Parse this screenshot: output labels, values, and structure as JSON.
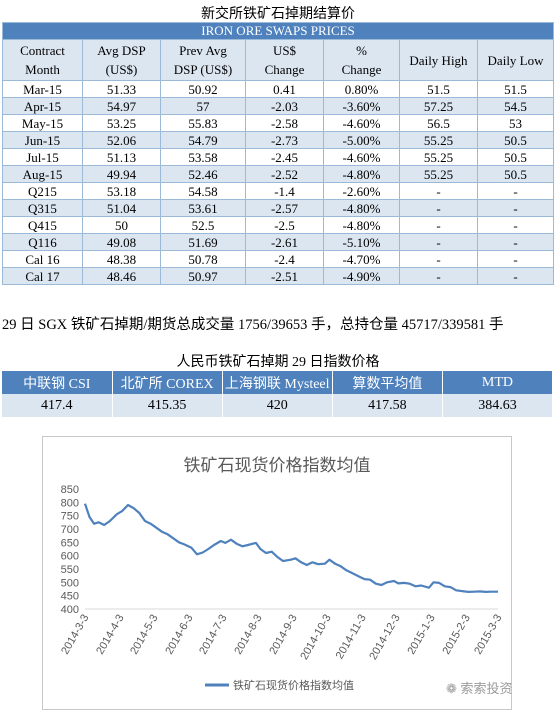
{
  "swaps_caption": "新交所铁矿石掉期结算价",
  "swaps_table": {
    "banner": "IRON ORE SWAPS PRICES",
    "headers": [
      [
        "Contract",
        "Month"
      ],
      [
        "Avg DSP",
        "(US$)"
      ],
      [
        "Prev Avg",
        "DSP (US$)"
      ],
      [
        "US$",
        "Change"
      ],
      [
        "%",
        "Change"
      ],
      [
        "Daily High",
        ""
      ],
      [
        "Daily Low",
        ""
      ]
    ],
    "rows": [
      [
        "Mar-15",
        "51.33",
        "50.92",
        "0.41",
        "0.80%",
        "51.5",
        "51.5"
      ],
      [
        "Apr-15",
        "54.97",
        "57",
        "-2.03",
        "-3.60%",
        "57.25",
        "54.5"
      ],
      [
        "May-15",
        "53.25",
        "55.83",
        "-2.58",
        "-4.60%",
        "56.5",
        "53"
      ],
      [
        "Jun-15",
        "52.06",
        "54.79",
        "-2.73",
        "-5.00%",
        "55.25",
        "50.5"
      ],
      [
        "Jul-15",
        "51.13",
        "53.58",
        "-2.45",
        "-4.60%",
        "55.25",
        "50.5"
      ],
      [
        "Aug-15",
        "49.94",
        "52.46",
        "-2.52",
        "-4.80%",
        "55.25",
        "50.5"
      ],
      [
        "Q215",
        "53.18",
        "54.58",
        "-1.4",
        "-2.60%",
        "-",
        "-"
      ],
      [
        "Q315",
        "51.04",
        "53.61",
        "-2.57",
        "-4.80%",
        "-",
        "-"
      ],
      [
        "Q415",
        "50",
        "52.5",
        "-2.5",
        "-4.80%",
        "-",
        "-"
      ],
      [
        "Q116",
        "49.08",
        "51.69",
        "-2.61",
        "-5.10%",
        "-",
        "-"
      ],
      [
        "Cal 16",
        "48.38",
        "50.78",
        "-2.4",
        "-4.70%",
        "-",
        "-"
      ],
      [
        "Cal 17",
        "48.46",
        "50.97",
        "-2.51",
        "-4.90%",
        "-",
        "-"
      ]
    ]
  },
  "sgx_note": "29 日 SGX 铁矿石掉期/期货总成交量 1756/39653 手，总持仓量 45717/339581 手",
  "rmb_caption": "人民币铁矿石掉期 29 日指数价格",
  "rmb_table": {
    "headers": [
      "中联钢 CSI",
      "北矿所 COREX",
      "上海钢联 Mysteel",
      "算数平均值",
      "MTD"
    ],
    "values": [
      "417.4",
      "415.35",
      "420",
      "417.58",
      "384.63"
    ]
  },
  "chart_data": {
    "type": "line",
    "title": "铁矿石现货价格指数均值",
    "series": [
      {
        "name": "铁矿石现货价格指数均值",
        "x": [
          "2014-3-3",
          "2014-3-7",
          "2014-3-11",
          "2014-3-15",
          "2014-3-20",
          "2014-3-25",
          "2014-3-31",
          "2014-4-5",
          "2014-4-10",
          "2014-4-15",
          "2014-4-20",
          "2014-4-25",
          "2014-4-30",
          "2014-5-5",
          "2014-5-10",
          "2014-5-15",
          "2014-5-20",
          "2014-5-25",
          "2014-5-30",
          "2014-6-5",
          "2014-6-10",
          "2014-6-15",
          "2014-6-20",
          "2014-6-25",
          "2014-7-1",
          "2014-7-5",
          "2014-7-10",
          "2014-7-15",
          "2014-7-20",
          "2014-7-25",
          "2014-8-1",
          "2014-8-5",
          "2014-8-10",
          "2014-8-15",
          "2014-8-20",
          "2014-8-25",
          "2014-9-1",
          "2014-9-5",
          "2014-9-10",
          "2014-9-15",
          "2014-9-20",
          "2014-9-25",
          "2014-10-1",
          "2014-10-5",
          "2014-10-10",
          "2014-10-15",
          "2014-10-20",
          "2014-10-25",
          "2014-11-1",
          "2014-11-5",
          "2014-11-10",
          "2014-11-15",
          "2014-11-20",
          "2014-11-25",
          "2014-12-1",
          "2014-12-5",
          "2014-12-10",
          "2014-12-15",
          "2014-12-20",
          "2014-12-25",
          "2015-1-1",
          "2015-1-5",
          "2015-1-10",
          "2015-1-15",
          "2015-1-20",
          "2015-1-25",
          "2015-2-1",
          "2015-2-5",
          "2015-2-10",
          "2015-2-15",
          "2015-2-20",
          "2015-2-25",
          "2015-3-1",
          "2015-3-3"
        ],
        "values": [
          795,
          745,
          720,
          725,
          715,
          730,
          755,
          768,
          790,
          778,
          760,
          730,
          720,
          705,
          690,
          680,
          665,
          650,
          642,
          630,
          605,
          612,
          625,
          640,
          655,
          648,
          660,
          645,
          635,
          640,
          648,
          625,
          610,
          615,
          595,
          580,
          585,
          590,
          575,
          565,
          575,
          568,
          570,
          585,
          570,
          560,
          545,
          535,
          520,
          512,
          510,
          495,
          490,
          500,
          505,
          496,
          498,
          495,
          485,
          488,
          480,
          500,
          498,
          485,
          482,
          470,
          466,
          464,
          465,
          466,
          464,
          465,
          465,
          465
        ]
      }
    ],
    "ylim": [
      400,
      850
    ],
    "yticks": [
      400,
      450,
      500,
      550,
      600,
      650,
      700,
      750,
      800,
      850
    ],
    "xticks": [
      "2014-3-3",
      "2014-4-3",
      "2014-5-3",
      "2014-6-3",
      "2014-7-3",
      "2014-8-3",
      "2014-9-3",
      "2014-10-3",
      "2014-11-3",
      "2014-12-3",
      "2015-1-3",
      "2015-2-3",
      "2015-3-3"
    ],
    "color": "#4f81bd",
    "grid": false,
    "legend_position": "bottom"
  },
  "watermark": "索索投资"
}
